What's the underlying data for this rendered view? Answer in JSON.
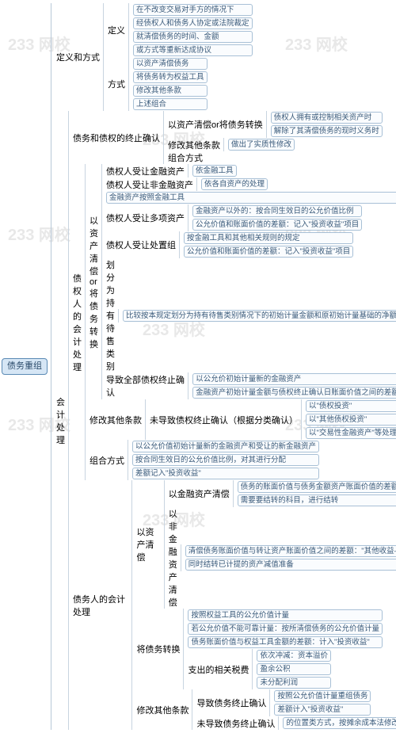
{
  "watermark_text": "233 网校",
  "watermark_color": "#e8e8e8",
  "watermark_fontsize": 20,
  "border_color": "#7aa0c4",
  "box_bg": "#f0f6fc",
  "text_color": "#2a4a6a",
  "root": {
    "label": "债务重组"
  },
  "l1": [
    {
      "label": "定义和方式",
      "children": [
        {
          "label": "定义",
          "leaves": [
            "在不改变交易对手方的情况下",
            "经债权人和债务人协定或法院裁定",
            "就清偿债务的时间、金额",
            "或方式等重新达成协议"
          ]
        },
        {
          "label": "方式",
          "leaves": [
            "以资产清偿债务",
            "将债务转为权益工具",
            "修改其他条款",
            "上述组合"
          ]
        }
      ]
    },
    {
      "label": "会计处理",
      "children": [
        {
          "label": "债务和债权的终止确认",
          "sub": [
            {
              "label": "以资产清偿or将债务转换",
              "leaves": [
                "债权人拥有或控制相关资产时",
                "解除了其清偿债务的现时义务时"
              ]
            },
            {
              "label": "修改其他条款",
              "leaves": [
                "做出了实质性修改"
              ]
            },
            {
              "label": "组合方式",
              "leaves": []
            }
          ]
        },
        {
          "label": "债权人的会计处理",
          "sub": [
            {
              "label": "以资产清偿or将债务转换",
              "groups": [
                {
                  "label": "债权人受让金融资产",
                  "leaves": [
                    "依金融工具"
                  ]
                },
                {
                  "label": "债权人受让非金融资产",
                  "leaves": [
                    "依各自资产的处理"
                  ]
                },
                {
                  "label": "",
                  "leaves": [
                    "金融资产按照金融工具"
                  ]
                },
                {
                  "label": "债权人受让多项资产",
                  "leaves": [
                    "金融资产以外的：按合同生效日的公允价值比例",
                    "公允价值和账面价值的差额：记入\"投资收益\"项目"
                  ]
                },
                {
                  "label": "债权人受让处置组",
                  "leaves": [
                    "按金融工具和其他相关规则的规定",
                    "公允价值和账面价值的差额：记入\"投资收益\"项目"
                  ]
                },
                {
                  "label": "划分为持有待售类别",
                  "leaves": [
                    "比较按本规定划分为持有待售类别情况下的初始计量金额和原初始计量基础的净额，以再者最低计量"
                  ]
                },
                {
                  "label": "导致全部债权终止确认",
                  "leaves": [
                    "以公允价初始计量新的金融资产",
                    "金融资产初始计量金额与债权终止确认日账面价值之间的差额，记入\"投资收益\""
                  ]
                }
              ]
            },
            {
              "label": "修改其他条款",
              "groups": [
                {
                  "label": "未导致债权终止确认（根据分类确认）",
                  "leaves": [
                    "以\"债权投资\"",
                    "以\"其他债权投资\"",
                    "以\"交易性金融资产\"等处理"
                  ]
                }
              ]
            },
            {
              "label": "组合方式",
              "groups": [
                {
                  "label": "",
                  "leaves": [
                    "以公允价值初始计量新的金融资产和受让的新金融资产",
                    "按合同生效日的公允价值比例，对其进行分配",
                    "差额记入\"投资收益\""
                  ]
                }
              ]
            }
          ]
        },
        {
          "label": "债务人的会计处理",
          "sub": [
            {
              "label": "以资产清偿",
              "groups": [
                {
                  "label": "以金融资产清偿",
                  "leaves": [
                    "债务的账面价值与债务金额资产账面价值的差额：记入\"投资收益\"",
                    "需要要结转的科目，进行结转"
                  ]
                },
                {
                  "label": "以非金融资产清偿",
                  "leaves": [
                    "清偿债务账面价值与转让资产账面价值之间的差额：\"其他收益——债务重组收益\"",
                    "同时结转已计提的资产减值准备"
                  ]
                }
              ]
            },
            {
              "label": "将债务转换",
              "groups": [
                {
                  "label": "",
                  "leaves": [
                    "按照权益工具的公允价值计量",
                    "若公允价值不能可靠计量：按所清偿债务的公允价值计量",
                    "债务账面价值与权益工具金额的差额：计入\"投资收益\""
                  ]
                },
                {
                  "label": "支出的相关税费",
                  "leaves": [
                    "依次冲减：资本溢价",
                    "盈余公积",
                    "未分配利润"
                  ]
                }
              ]
            },
            {
              "label": "修改其他条款",
              "groups": [
                {
                  "label": "导致债务终止确认",
                  "leaves": [
                    "按照公允价值计量重组债务",
                    "差额计入\"投资收益\""
                  ]
                },
                {
                  "label": "未导致债务终止确认",
                  "leaves": [
                    "的位置类方式，按摊余成本法修改处理"
                  ]
                }
              ]
            }
          ]
        }
      ]
    }
  ]
}
